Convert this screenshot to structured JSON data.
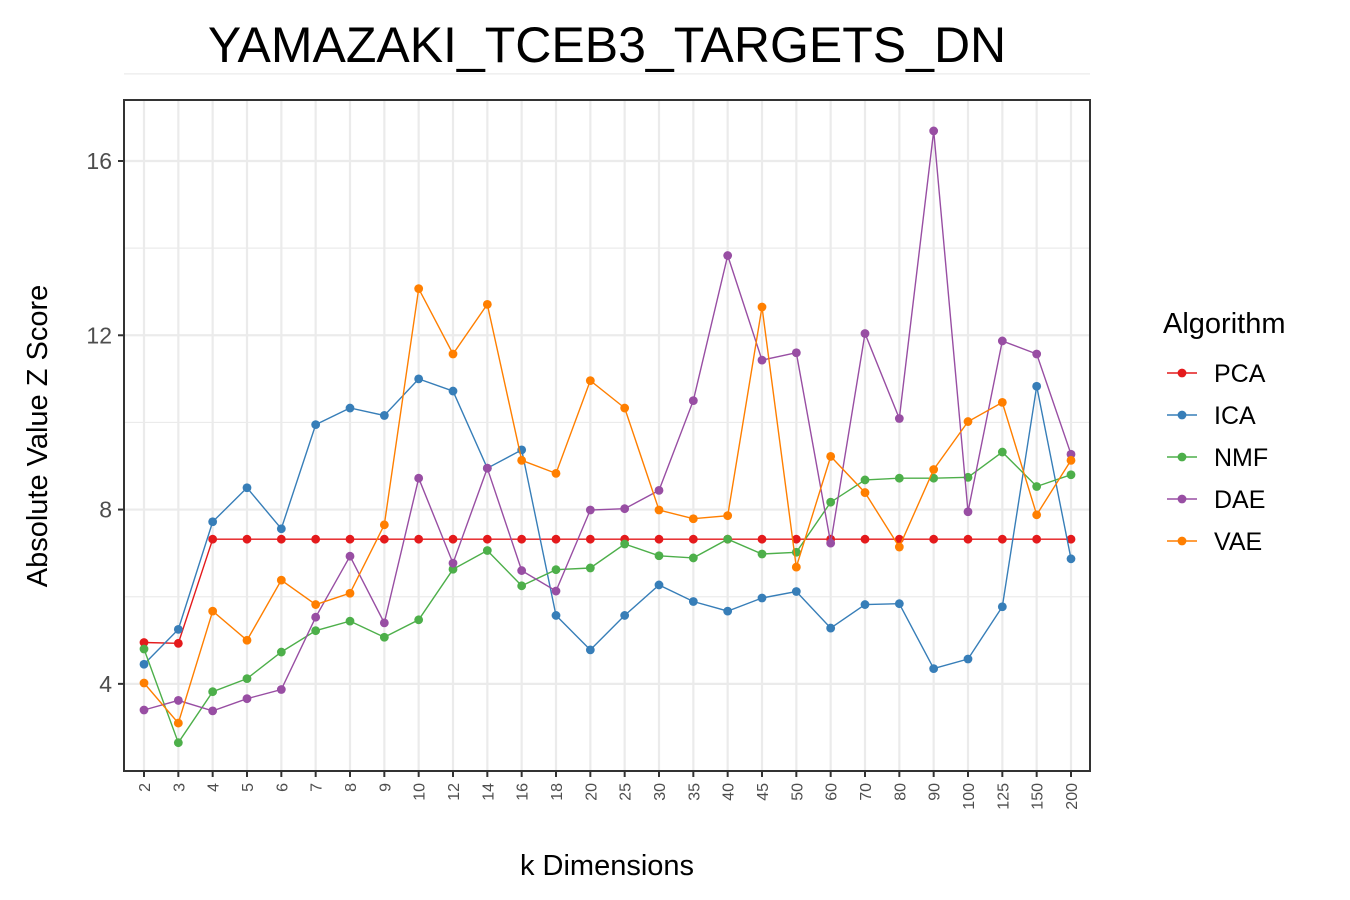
{
  "chart_data": {
    "type": "line",
    "title": "YAMAZAKI_TCEB3_TARGETS_DN",
    "xlabel": "k Dimensions",
    "ylabel": "Absolute Value Z Score",
    "categories": [
      "2",
      "3",
      "4",
      "5",
      "6",
      "7",
      "8",
      "9",
      "10",
      "12",
      "14",
      "16",
      "18",
      "20",
      "25",
      "30",
      "35",
      "40",
      "45",
      "50",
      "60",
      "70",
      "80",
      "90",
      "100",
      "125",
      "150",
      "200"
    ],
    "ylim": [
      2,
      17.4
    ],
    "yticks": [
      4,
      8,
      12,
      16
    ],
    "grid": true,
    "legend": {
      "title": "Algorithm",
      "position": "right"
    },
    "series": [
      {
        "name": "PCA",
        "color": "#e41a1c",
        "values": [
          4.95,
          4.93,
          7.32,
          7.32,
          7.32,
          7.32,
          7.32,
          7.32,
          7.32,
          7.32,
          7.32,
          7.32,
          7.32,
          7.32,
          7.32,
          7.32,
          7.32,
          7.32,
          7.32,
          7.32,
          7.32,
          7.32,
          7.32,
          7.32,
          7.32,
          7.32,
          7.32,
          7.32
        ]
      },
      {
        "name": "ICA",
        "color": "#377eb8",
        "values": [
          4.45,
          5.25,
          7.72,
          8.5,
          7.56,
          9.95,
          10.33,
          10.16,
          11.0,
          10.72,
          8.95,
          9.37,
          5.57,
          4.78,
          5.57,
          6.27,
          5.89,
          5.67,
          5.97,
          6.12,
          5.28,
          5.82,
          5.84,
          4.35,
          4.57,
          5.77,
          10.83,
          6.87
        ]
      },
      {
        "name": "NMF",
        "color": "#4daf4a",
        "values": [
          4.8,
          2.65,
          3.82,
          4.12,
          4.73,
          5.22,
          5.44,
          5.07,
          5.47,
          6.63,
          7.06,
          6.25,
          6.62,
          6.66,
          7.21,
          6.94,
          6.89,
          7.32,
          6.98,
          7.02,
          8.17,
          8.68,
          8.72,
          8.72,
          8.74,
          9.32,
          8.53,
          8.8
        ]
      },
      {
        "name": "DAE",
        "color": "#984ea3",
        "values": [
          3.4,
          3.62,
          3.38,
          3.66,
          3.87,
          5.53,
          6.93,
          5.4,
          8.72,
          6.77,
          8.95,
          6.6,
          6.13,
          7.99,
          8.02,
          8.44,
          10.5,
          13.83,
          11.43,
          11.6,
          7.23,
          12.04,
          10.09,
          16.69,
          7.95,
          11.87,
          11.57,
          9.27
        ]
      },
      {
        "name": "VAE",
        "color": "#ff7f00",
        "values": [
          4.02,
          3.1,
          5.67,
          5.0,
          6.38,
          5.82,
          6.08,
          7.65,
          13.07,
          11.57,
          12.71,
          9.13,
          8.83,
          10.96,
          10.33,
          7.99,
          7.79,
          7.86,
          12.65,
          6.68,
          9.22,
          8.39,
          7.14,
          8.92,
          10.02,
          10.46,
          7.88,
          9.13
        ]
      }
    ]
  }
}
